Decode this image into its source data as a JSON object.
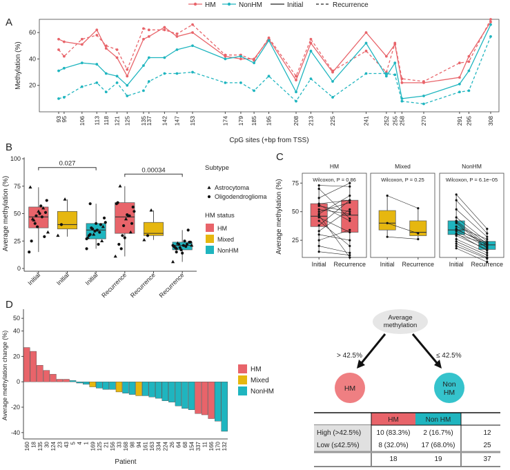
{
  "colors": {
    "hm": "#e8646a",
    "nonhm": "#1fb5bf",
    "mixed": "#e6b70f",
    "hm_light": "#ef7f82",
    "nonhm_light": "#35c3cc",
    "node": "#e6e6e6",
    "table_header": "#e0e0e0"
  },
  "panel_labels": {
    "a": "A",
    "b": "B",
    "c": "C",
    "d": "D"
  },
  "chart_data": [
    {
      "id": "A",
      "type": "line",
      "legend": {
        "hm": "HM",
        "nonhm": "NonHM",
        "initial": "Initial",
        "recurrence": "Recurrence"
      },
      "xlabel": "CpG sites (+bp from TSS)",
      "ylabel": "Methylation (%)",
      "ylim": [
        0,
        70
      ],
      "yticks": [
        20,
        40,
        60
      ],
      "x": [
        93,
        95,
        106,
        113,
        118,
        121,
        125,
        135,
        137,
        142,
        147,
        153,
        174,
        179,
        185,
        195,
        208,
        213,
        225,
        241,
        252,
        255,
        258,
        270,
        291,
        295,
        308
      ],
      "x_rank": [
        0,
        0.7,
        3,
        4.9,
        6.1,
        7.5,
        8.8,
        10.9,
        11.6,
        13.6,
        15.2,
        17.2,
        21.4,
        23.4,
        25.1,
        27,
        30.5,
        32.4,
        35.2,
        39.5,
        42.1,
        43.2,
        44.1,
        46.9,
        51.5,
        52.7,
        55.5
      ],
      "series": [
        {
          "name": "HM Initial",
          "group": "hm",
          "style": "solid",
          "values": [
            55,
            53,
            51,
            62,
            48,
            41,
            27,
            55,
            57,
            64,
            57,
            60,
            42,
            40,
            40,
            55,
            24,
            52,
            30,
            60,
            42,
            51,
            22,
            22,
            26,
            42,
            68
          ]
        },
        {
          "name": "HM Recurrence",
          "group": "hm",
          "style": "dashed",
          "values": [
            47,
            42,
            55,
            58,
            50,
            47,
            32,
            63,
            62,
            62,
            59,
            66,
            43,
            43,
            39,
            56,
            27,
            55,
            31,
            46,
            30,
            52,
            25,
            23,
            37,
            38,
            70
          ]
        },
        {
          "name": "NonHM Initial",
          "group": "nonhm",
          "style": "solid",
          "values": [
            31,
            33,
            37,
            36,
            29,
            27,
            20,
            35,
            41,
            41,
            47,
            50,
            40,
            42,
            37,
            54,
            15,
            46,
            23,
            52,
            27,
            37,
            10,
            12,
            21,
            31,
            66
          ]
        },
        {
          "name": "NonHM Recurrence",
          "group": "nonhm",
          "style": "dashed",
          "values": [
            10,
            11,
            19,
            22,
            15,
            22,
            12,
            16,
            23,
            29,
            29,
            30,
            22,
            22,
            16,
            27,
            8,
            25,
            11,
            29,
            29,
            28,
            8,
            6,
            15,
            16,
            57
          ]
        }
      ]
    },
    {
      "id": "B",
      "type": "box",
      "ylabel": "Average methylation (%)",
      "ylim": [
        0,
        100
      ],
      "yticks": [
        0,
        25,
        50,
        75,
        100
      ],
      "categories": [
        "Initial",
        "Initial",
        "Initial",
        "Recurrence",
        "Recurrence",
        "Recurrence"
      ],
      "group_of": [
        "hm",
        "mixed",
        "nonhm",
        "hm",
        "mixed",
        "nonhm"
      ],
      "boxes": [
        {
          "q1": 37,
          "med": 47,
          "q3": 56,
          "lo": 15,
          "hi": 74
        },
        {
          "q1": 36,
          "med": 40,
          "q3": 52,
          "lo": 29,
          "hi": 63
        },
        {
          "q1": 27,
          "med": 35,
          "q3": 41,
          "lo": 18,
          "hi": 59
        },
        {
          "q1": 32,
          "med": 47,
          "q3": 60,
          "lo": 11,
          "hi": 75
        },
        {
          "q1": 30,
          "med": 32,
          "q3": 42,
          "lo": 26,
          "hi": 53
        },
        {
          "q1": 17,
          "med": 21,
          "q3": 24,
          "lo": 6,
          "hi": 35
        }
      ],
      "points": [
        [
          [
            15,
            "c"
          ],
          [
            45,
            "t"
          ],
          [
            48,
            "c"
          ],
          [
            50,
            "c"
          ],
          [
            55,
            "t"
          ],
          [
            62,
            "c"
          ],
          [
            74,
            "t"
          ],
          [
            44,
            "t"
          ],
          [
            38,
            "c"
          ],
          [
            57,
            "c"
          ],
          [
            29,
            "c"
          ],
          [
            33,
            "t"
          ],
          [
            25,
            "c"
          ],
          [
            41,
            "c"
          ],
          [
            52,
            "t"
          ],
          [
            47,
            "c"
          ],
          [
            51,
            "c"
          ]
        ],
        [
          [
            30,
            "t"
          ],
          [
            40,
            "c"
          ],
          [
            63,
            "t"
          ]
        ],
        [
          [
            18,
            "c"
          ],
          [
            59,
            "c"
          ],
          [
            31,
            "t"
          ],
          [
            35,
            "c"
          ],
          [
            40,
            "c"
          ],
          [
            46,
            "c"
          ],
          [
            28,
            "t"
          ],
          [
            37,
            "c"
          ],
          [
            34,
            "c"
          ],
          [
            22,
            "c"
          ],
          [
            25,
            "t"
          ],
          [
            42,
            "c"
          ],
          [
            30,
            "c"
          ],
          [
            36,
            "c"
          ],
          [
            41,
            "c"
          ],
          [
            33,
            "c"
          ],
          [
            38,
            "t"
          ],
          [
            27,
            "c"
          ],
          [
            31,
            "c"
          ]
        ],
        [
          [
            11,
            "t"
          ],
          [
            22,
            "c"
          ],
          [
            30,
            "c"
          ],
          [
            45,
            "t"
          ],
          [
            48,
            "c"
          ],
          [
            56,
            "c"
          ],
          [
            59,
            "c"
          ],
          [
            75,
            "t"
          ],
          [
            39,
            "c"
          ],
          [
            49,
            "c"
          ],
          [
            33,
            "t"
          ],
          [
            52,
            "c"
          ],
          [
            60,
            "c"
          ],
          [
            18,
            "c"
          ],
          [
            28,
            "c"
          ],
          [
            48,
            "c"
          ],
          [
            41,
            "c"
          ]
        ],
        [
          [
            26,
            "t"
          ],
          [
            30,
            "c"
          ],
          [
            53,
            "t"
          ]
        ],
        [
          [
            6,
            "t"
          ],
          [
            15,
            "c"
          ],
          [
            19,
            "c"
          ],
          [
            21,
            "c"
          ],
          [
            22,
            "c"
          ],
          [
            24,
            "c"
          ],
          [
            20,
            "c"
          ],
          [
            23,
            "t"
          ],
          [
            17,
            "c"
          ],
          [
            25,
            "c"
          ],
          [
            35,
            "c"
          ],
          [
            21,
            "t"
          ],
          [
            19,
            "c"
          ],
          [
            22,
            "c"
          ],
          [
            14,
            "c"
          ],
          [
            20,
            "c"
          ],
          [
            24,
            "c"
          ],
          [
            21,
            "c"
          ],
          [
            18,
            "c"
          ]
        ]
      ],
      "comparisons": [
        {
          "label": "0.027",
          "from": 0,
          "to": 2,
          "y": 92
        },
        {
          "label": "0.00034",
          "from": 3,
          "to": 5,
          "y": 86
        }
      ],
      "legend": {
        "subtype_title": "Subtype",
        "astro": "Astrocytoma",
        "oligo": "Oligodendroglioma",
        "status_title": "HM status",
        "hm": "HM",
        "mixed": "Mixed",
        "nonhm": "NonHM"
      }
    },
    {
      "id": "C",
      "type": "paired_box",
      "ylabel": "Average methylation (%)",
      "ylim": [
        10,
        80
      ],
      "yticks": [
        25,
        50,
        75
      ],
      "facets": [
        {
          "title": "HM",
          "group": "hm",
          "stat": "Wilcoxon, P = 0.86",
          "boxes": [
            {
              "q1": 37,
              "med": 46,
              "q3": 57,
              "lo": 15,
              "hi": 73
            },
            {
              "q1": 32,
              "med": 47,
              "q3": 60,
              "lo": 10,
              "hi": 75
            }
          ],
          "pairs": [
            [
              73,
              72
            ],
            [
              70,
              44
            ],
            [
              62,
              75
            ],
            [
              57,
              60
            ],
            [
              56,
              42
            ],
            [
              55,
              50
            ],
            [
              52,
              48
            ],
            [
              50,
              58
            ],
            [
              48,
              64
            ],
            [
              45,
              32
            ],
            [
              42,
              20
            ],
            [
              38,
              60
            ],
            [
              33,
              52
            ],
            [
              30,
              25
            ],
            [
              25,
              34
            ],
            [
              20,
              14
            ],
            [
              15,
              12
            ],
            [
              47,
              10
            ]
          ]
        },
        {
          "title": "Mixed",
          "group": "mixed",
          "stat": "Wilcoxon, P = 0.25",
          "boxes": [
            {
              "q1": 34,
              "med": 40,
              "q3": 51,
              "lo": 28,
              "hi": 64
            },
            {
              "q1": 29,
              "med": 32,
              "q3": 42,
              "lo": 25,
              "hi": 53
            }
          ],
          "pairs": [
            [
              64,
              53
            ],
            [
              40,
              31
            ],
            [
              28,
              26
            ]
          ]
        },
        {
          "title": "NonHM",
          "group": "nonhm",
          "stat": "Wilcoxon, P = 6.1e−05",
          "boxes": [
            {
              "q1": 30,
              "med": 34,
              "q3": 42,
              "lo": 18,
              "hi": 65
            },
            {
              "q1": 17,
              "med": 21,
              "q3": 24,
              "lo": 6,
              "hi": 35
            }
          ],
          "pairs": [
            [
              65,
              35
            ],
            [
              60,
              31
            ],
            [
              52,
              28
            ],
            [
              45,
              24
            ],
            [
              42,
              22
            ],
            [
              41,
              20
            ],
            [
              40,
              18
            ],
            [
              37,
              26
            ],
            [
              35,
              21
            ],
            [
              34,
              23
            ],
            [
              33,
              19
            ],
            [
              31,
              16
            ],
            [
              30,
              22
            ],
            [
              29,
              17
            ],
            [
              26,
              14
            ],
            [
              24,
              12
            ],
            [
              22,
              10
            ],
            [
              20,
              9
            ],
            [
              18,
              6
            ]
          ]
        }
      ],
      "xcats": [
        "Initial",
        "Recurrence"
      ]
    },
    {
      "id": "D",
      "type": "bar",
      "ylabel": "Average methylation change (%)",
      "xlabel": "Patient",
      "ylim": [
        -45,
        55
      ],
      "yticks": [
        -40,
        -20,
        0,
        20,
        40,
        50
      ],
      "ytick_labels": [
        "-40",
        "-20",
        "0",
        "20",
        "40",
        "50"
      ],
      "categories": [
        "160",
        "18",
        "135",
        "30",
        "124",
        "23",
        "43",
        "5",
        "4",
        "1",
        "169",
        "125",
        "21",
        "156",
        "33",
        "168",
        "98",
        "94",
        "161",
        "163",
        "334",
        "224",
        "26",
        "64",
        "68",
        "154",
        "337",
        "11",
        "166",
        "170",
        "132"
      ],
      "groups": [
        "hm",
        "hm",
        "hm",
        "hm",
        "hm",
        "hm",
        "hm",
        "nonhm",
        "nonhm",
        "nonhm",
        "mixed",
        "nonhm",
        "nonhm",
        "nonhm",
        "mixed",
        "nonhm",
        "nonhm",
        "mixed",
        "nonhm",
        "nonhm",
        "nonhm",
        "nonhm",
        "nonhm",
        "nonhm",
        "nonhm",
        "nonhm",
        "hm",
        "hm",
        "hm",
        "nonhm",
        "nonhm"
      ],
      "values": [
        27,
        24,
        13,
        9,
        6,
        2,
        2,
        1,
        -1,
        -2,
        -4,
        -5,
        -6,
        -6,
        -8,
        -9,
        -10,
        -11,
        -11,
        -12,
        -13,
        -15,
        -16,
        -19,
        -21,
        -22,
        -25,
        -26,
        -29,
        -31,
        -39
      ],
      "legend": {
        "hm": "HM",
        "mixed": "Mixed",
        "nonhm": "NonHM"
      }
    }
  ],
  "tree": {
    "root": "Average\nmethylation",
    "left_edge": "> 42.5%",
    "right_edge": "≤ 42.5%",
    "left_leaf": "HM",
    "right_leaf": "Non\nHM"
  },
  "table": {
    "headers": [
      "HM",
      "Non HM"
    ],
    "rows": [
      {
        "label": "High (>42.5%)",
        "hm": "10 (83.3%)",
        "nonhm": "2 (16.7%)",
        "total": "12"
      },
      {
        "label": "Low (≤42.5%)",
        "hm": "8 (32.0%)",
        "nonhm": "17 (68.0%)",
        "total": "25"
      }
    ],
    "totals": {
      "hm": "18",
      "nonhm": "19",
      "all": "37"
    }
  }
}
